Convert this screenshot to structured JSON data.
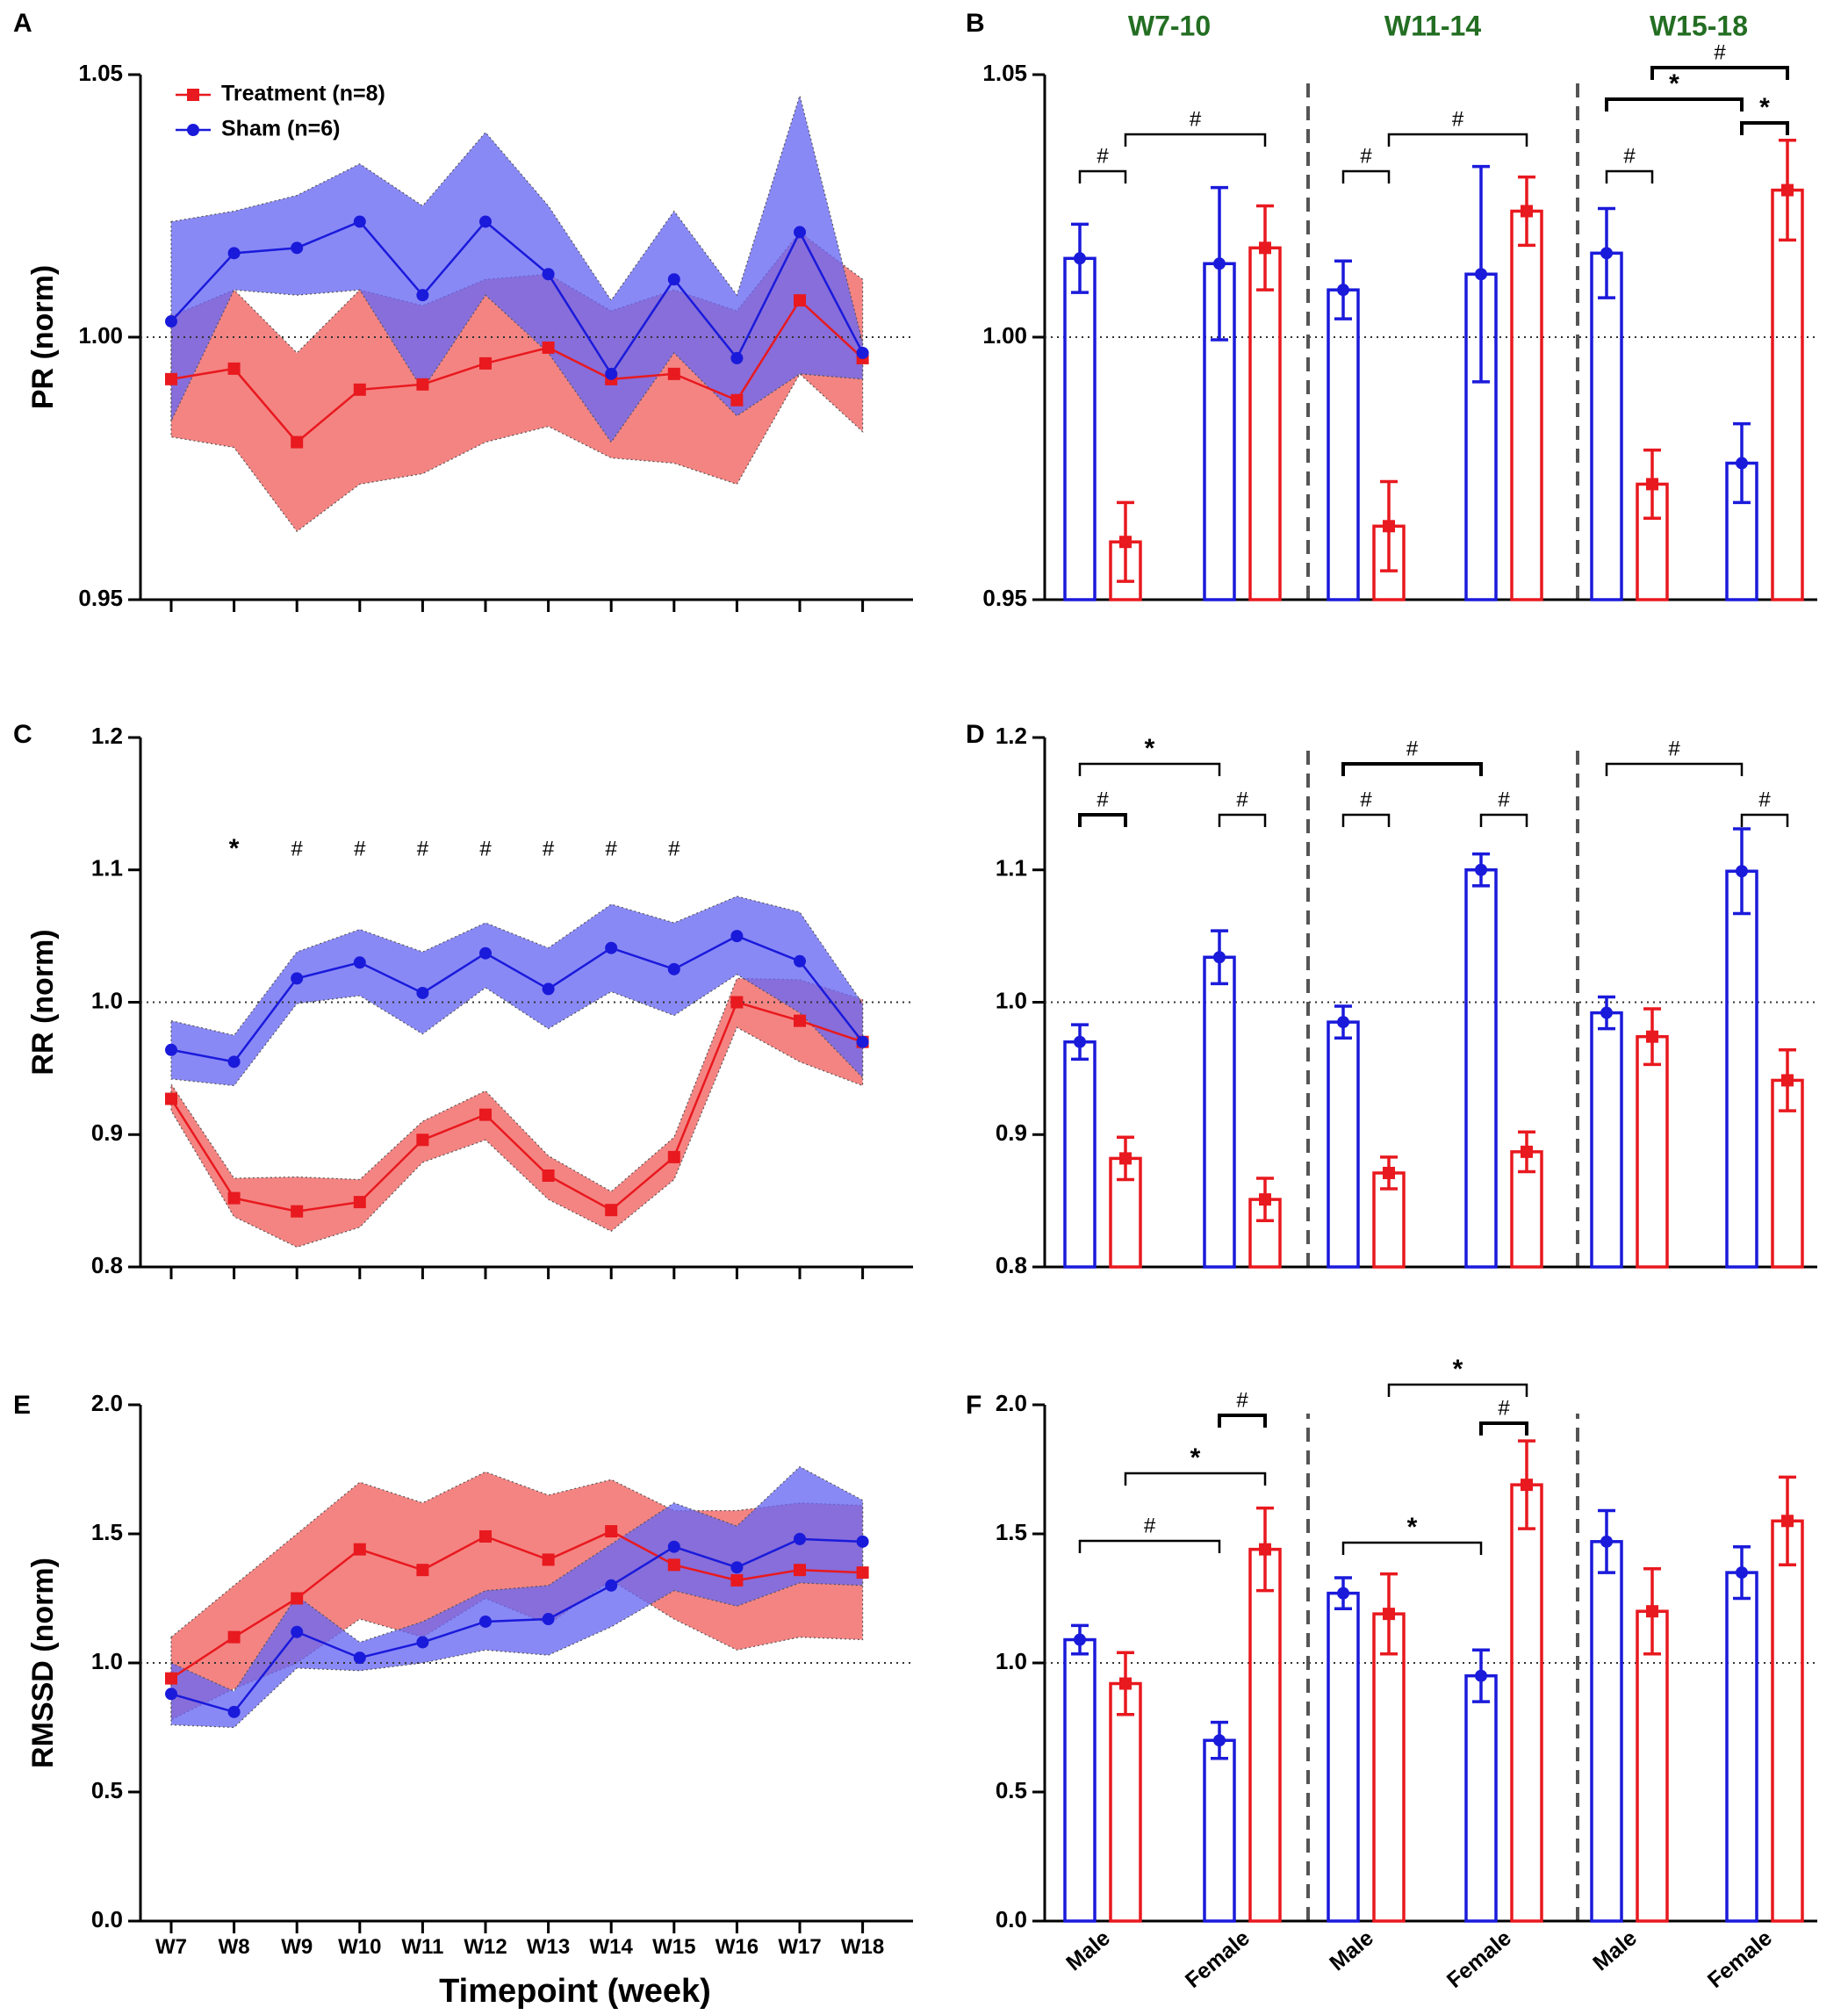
{
  "colors": {
    "treatment": "#e8191f",
    "sham": "#1a1adb",
    "treatment_band": "#f26f6c",
    "sham_band": "#6868f4",
    "overlap_band": "#6f3fa8",
    "group_title": "#236e23",
    "axis": "#000000",
    "divider": "#555555"
  },
  "x_axis_title": "Timepoint (week)",
  "legend": {
    "treatment": "Treatment (n=8)",
    "sham": "Sham (n=6)"
  },
  "chart_data": [
    {
      "id": "A",
      "panel_label": "A",
      "type": "line",
      "ylabel": "PR (norm)",
      "ylim": [
        0.95,
        1.05
      ],
      "yticks": [
        "0.95",
        "1.00",
        "1.05"
      ],
      "ytick_values": [
        0.95,
        1.0,
        1.05
      ],
      "reference_line": 1.0,
      "categories": [
        "W7",
        "W8",
        "W9",
        "W10",
        "W11",
        "W12",
        "W13",
        "W14",
        "W15",
        "W16",
        "W17",
        "W18"
      ],
      "series": [
        {
          "name": "Treatment (n=8)",
          "values": [
            0.992,
            0.994,
            0.98,
            0.99,
            0.991,
            0.995,
            0.998,
            0.992,
            0.993,
            0.988,
            1.007,
            0.996
          ],
          "lower": [
            0.981,
            0.979,
            0.963,
            0.972,
            0.974,
            0.98,
            0.983,
            0.977,
            0.976,
            0.972,
            0.993,
            0.982
          ],
          "upper": [
            1.004,
            1.009,
            0.997,
            1.009,
            1.006,
            1.011,
            1.012,
            1.005,
            1.009,
            1.005,
            1.02,
            1.011
          ]
        },
        {
          "name": "Sham (n=6)",
          "values": [
            1.003,
            1.016,
            1.017,
            1.022,
            1.008,
            1.022,
            1.012,
            0.993,
            1.011,
            0.996,
            1.02,
            0.997
          ],
          "lower": [
            0.984,
            1.009,
            1.008,
            1.009,
            0.99,
            1.008,
            0.997,
            0.98,
            0.997,
            0.985,
            0.993,
            0.992
          ],
          "upper": [
            1.022,
            1.024,
            1.027,
            1.033,
            1.025,
            1.039,
            1.025,
            1.007,
            1.024,
            1.008,
            1.046,
            0.999
          ]
        }
      ],
      "annotations": []
    },
    {
      "id": "C",
      "panel_label": "C",
      "type": "line",
      "ylabel": "RR (norm)",
      "ylim": [
        0.8,
        1.2
      ],
      "yticks": [
        "0.8",
        "0.9",
        "1.0",
        "1.1",
        "1.2"
      ],
      "ytick_values": [
        0.8,
        0.9,
        1.0,
        1.1,
        1.2
      ],
      "reference_line": 1.0,
      "categories": [
        "W7",
        "W8",
        "W9",
        "W10",
        "W11",
        "W12",
        "W13",
        "W14",
        "W15",
        "W16",
        "W17",
        "W18"
      ],
      "series": [
        {
          "name": "Treatment (n=8)",
          "values": [
            0.927,
            0.852,
            0.842,
            0.849,
            0.896,
            0.915,
            0.869,
            0.843,
            0.883,
            1.0,
            0.986,
            0.97
          ],
          "lower": [
            0.918,
            0.838,
            0.815,
            0.83,
            0.879,
            0.896,
            0.851,
            0.827,
            0.866,
            0.981,
            0.955,
            0.937
          ],
          "upper": [
            0.938,
            0.867,
            0.868,
            0.866,
            0.91,
            0.933,
            0.884,
            0.857,
            0.898,
            1.018,
            1.017,
            1.002
          ]
        },
        {
          "name": "Sham (n=6)",
          "values": [
            0.964,
            0.955,
            1.018,
            1.03,
            1.007,
            1.037,
            1.01,
            1.041,
            1.025,
            1.05,
            1.031,
            0.97
          ],
          "lower": [
            0.942,
            0.937,
            0.999,
            1.005,
            0.976,
            1.011,
            0.98,
            1.008,
            0.99,
            1.021,
            0.992,
            0.943
          ],
          "upper": [
            0.986,
            0.975,
            1.038,
            1.055,
            1.038,
            1.06,
            1.041,
            1.074,
            1.06,
            1.08,
            1.068,
            0.999
          ]
        }
      ],
      "annotations": [
        {
          "category": "W8",
          "symbol": "*"
        },
        {
          "category": "W9",
          "symbol": "#"
        },
        {
          "category": "W10",
          "symbol": "#"
        },
        {
          "category": "W11",
          "symbol": "#"
        },
        {
          "category": "W12",
          "symbol": "#"
        },
        {
          "category": "W13",
          "symbol": "#"
        },
        {
          "category": "W14",
          "symbol": "#"
        },
        {
          "category": "W15",
          "symbol": "#"
        }
      ]
    },
    {
      "id": "E",
      "panel_label": "E",
      "type": "line",
      "ylabel": "RMSSD (norm)",
      "ylim": [
        0.0,
        2.0
      ],
      "yticks": [
        "0.0",
        "0.5",
        "1.0",
        "1.5",
        "2.0"
      ],
      "ytick_values": [
        0.0,
        0.5,
        1.0,
        1.5,
        2.0
      ],
      "reference_line": 1.0,
      "categories": [
        "W7",
        "W8",
        "W9",
        "W10",
        "W11",
        "W12",
        "W13",
        "W14",
        "W15",
        "W16",
        "W17",
        "W18"
      ],
      "series": [
        {
          "name": "Treatment (n=8)",
          "values": [
            0.94,
            1.1,
            1.25,
            1.44,
            1.36,
            1.49,
            1.4,
            1.51,
            1.38,
            1.32,
            1.36,
            1.35
          ],
          "lower": [
            0.78,
            0.9,
            1.0,
            1.17,
            1.1,
            1.25,
            1.15,
            1.32,
            1.17,
            1.05,
            1.1,
            1.09
          ],
          "upper": [
            1.1,
            1.3,
            1.5,
            1.7,
            1.62,
            1.74,
            1.65,
            1.71,
            1.59,
            1.59,
            1.62,
            1.61
          ]
        },
        {
          "name": "Sham (n=6)",
          "values": [
            0.88,
            0.81,
            1.12,
            1.02,
            1.08,
            1.16,
            1.17,
            1.3,
            1.45,
            1.37,
            1.48,
            1.47
          ],
          "lower": [
            0.76,
            0.75,
            0.98,
            0.97,
            1.0,
            1.05,
            1.03,
            1.14,
            1.28,
            1.22,
            1.31,
            1.3
          ],
          "upper": [
            1.0,
            0.89,
            1.26,
            1.08,
            1.16,
            1.28,
            1.3,
            1.46,
            1.62,
            1.53,
            1.76,
            1.63
          ]
        }
      ],
      "annotations": []
    },
    {
      "id": "B",
      "panel_label": "B",
      "type": "bar",
      "ylabel": "",
      "ylim": [
        0.95,
        1.05
      ],
      "yticks": [
        "0.95",
        "1.00",
        "1.05"
      ],
      "ytick_values": [
        0.95,
        1.0,
        1.05
      ],
      "reference_line": 1.0,
      "group_titles": [
        "W7-10",
        "W11-14",
        "W15-18"
      ],
      "categories": [
        "Male",
        "Female",
        "Male",
        "Female",
        "Male",
        "Female"
      ],
      "series": [
        {
          "name": "Sham",
          "values": [
            1.015,
            1.014,
            1.009,
            1.012,
            1.016,
            0.976
          ],
          "errors": [
            0.0065,
            0.0145,
            0.0055,
            0.0205,
            0.0085,
            0.0075
          ]
        },
        {
          "name": "Treatment",
          "values": [
            0.961,
            1.017,
            0.964,
            1.024,
            0.972,
            1.028
          ],
          "errors": [
            0.0075,
            0.008,
            0.0085,
            0.0065,
            0.0065,
            0.0095
          ]
        }
      ],
      "brackets": [
        {
          "from": [
            0,
            "Sham"
          ],
          "to": [
            0,
            "Treatment"
          ],
          "level": 0,
          "symbol": "#",
          "bold": false
        },
        {
          "from": [
            0,
            "Treatment"
          ],
          "to": [
            1,
            "Treatment"
          ],
          "level": 1,
          "symbol": "#",
          "bold": false
        },
        {
          "from": [
            2,
            "Sham"
          ],
          "to": [
            2,
            "Treatment"
          ],
          "level": 0,
          "symbol": "#",
          "bold": false
        },
        {
          "from": [
            2,
            "Treatment"
          ],
          "to": [
            3,
            "Treatment"
          ],
          "level": 1,
          "symbol": "#",
          "bold": false
        },
        {
          "from": [
            4,
            "Sham"
          ],
          "to": [
            4,
            "Treatment"
          ],
          "level": 0,
          "symbol": "#",
          "bold": false
        },
        {
          "from": [
            4,
            "Sham"
          ],
          "to": [
            5,
            "Sham"
          ],
          "level": 1,
          "symbol": "*",
          "bold": true
        },
        {
          "from": [
            5,
            "Sham"
          ],
          "to": [
            5,
            "Treatment"
          ],
          "level": 1,
          "symbol": "*",
          "bold": true
        },
        {
          "from": [
            4,
            "Treatment"
          ],
          "to": [
            5,
            "Treatment"
          ],
          "level": 2,
          "symbol": "#",
          "bold": true
        }
      ]
    },
    {
      "id": "D",
      "panel_label": "D",
      "type": "bar",
      "ylabel": "",
      "ylim": [
        0.8,
        1.2
      ],
      "yticks": [
        "0.8",
        "0.9",
        "1.0",
        "1.1",
        "1.2"
      ],
      "ytick_values": [
        0.8,
        0.9,
        1.0,
        1.1,
        1.2
      ],
      "reference_line": 1.0,
      "group_titles": [],
      "categories": [
        "Male",
        "Female",
        "Male",
        "Female",
        "Male",
        "Female"
      ],
      "series": [
        {
          "name": "Sham",
          "values": [
            0.97,
            1.034,
            0.985,
            1.1,
            0.992,
            1.099
          ],
          "errors": [
            0.013,
            0.02,
            0.012,
            0.012,
            0.012,
            0.032
          ]
        },
        {
          "name": "Treatment",
          "values": [
            0.882,
            0.851,
            0.871,
            0.887,
            0.974,
            0.941
          ],
          "errors": [
            0.016,
            0.016,
            0.012,
            0.015,
            0.021,
            0.023
          ]
        }
      ],
      "brackets": [
        {
          "from": [
            0,
            "Sham"
          ],
          "to": [
            0,
            "Treatment"
          ],
          "level": 0,
          "symbol": "#",
          "bold": true
        },
        {
          "from": [
            1,
            "Sham"
          ],
          "to": [
            1,
            "Treatment"
          ],
          "level": 0,
          "symbol": "#",
          "bold": false
        },
        {
          "from": [
            0,
            "Sham"
          ],
          "to": [
            1,
            "Sham"
          ],
          "level": 1,
          "symbol": "*",
          "bold": false
        },
        {
          "from": [
            2,
            "Sham"
          ],
          "to": [
            2,
            "Treatment"
          ],
          "level": 0,
          "symbol": "#",
          "bold": false
        },
        {
          "from": [
            3,
            "Sham"
          ],
          "to": [
            3,
            "Treatment"
          ],
          "level": 0,
          "symbol": "#",
          "bold": false
        },
        {
          "from": [
            2,
            "Sham"
          ],
          "to": [
            3,
            "Sham"
          ],
          "level": 1,
          "symbol": "#",
          "bold": true
        },
        {
          "from": [
            5,
            "Sham"
          ],
          "to": [
            5,
            "Treatment"
          ],
          "level": 0,
          "symbol": "#",
          "bold": false
        },
        {
          "from": [
            4,
            "Sham"
          ],
          "to": [
            5,
            "Sham"
          ],
          "level": 1,
          "symbol": "#",
          "bold": false
        }
      ]
    },
    {
      "id": "F",
      "panel_label": "F",
      "type": "bar",
      "ylabel": "",
      "ylim": [
        0.0,
        2.0
      ],
      "yticks": [
        "0.0",
        "0.5",
        "1.0",
        "1.5",
        "2.0"
      ],
      "ytick_values": [
        0.0,
        0.5,
        1.0,
        1.5,
        2.0
      ],
      "reference_line": 1.0,
      "group_titles": [],
      "categories": [
        "Male",
        "Female",
        "Male",
        "Female",
        "Male",
        "Female"
      ],
      "series": [
        {
          "name": "Sham",
          "values": [
            1.09,
            0.7,
            1.27,
            0.95,
            1.47,
            1.35
          ],
          "errors": [
            0.055,
            0.07,
            0.06,
            0.1,
            0.12,
            0.1
          ]
        },
        {
          "name": "Treatment",
          "values": [
            0.92,
            1.44,
            1.19,
            1.69,
            1.2,
            1.55
          ],
          "errors": [
            0.12,
            0.16,
            0.155,
            0.17,
            0.165,
            0.17
          ]
        }
      ],
      "brackets": [
        {
          "from": [
            0,
            "Sham"
          ],
          "to": [
            1,
            "Sham"
          ],
          "level": 0,
          "symbol": "#",
          "bold": false
        },
        {
          "from": [
            0,
            "Treatment"
          ],
          "to": [
            1,
            "Treatment"
          ],
          "level": 1,
          "symbol": "*",
          "bold": false
        },
        {
          "from": [
            1,
            "Sham"
          ],
          "to": [
            1,
            "Treatment"
          ],
          "level": 2,
          "symbol": "#",
          "bold": true
        },
        {
          "from": [
            2,
            "Sham"
          ],
          "to": [
            3,
            "Sham"
          ],
          "level": 0,
          "symbol": "*",
          "bold": false
        },
        {
          "from": [
            3,
            "Sham"
          ],
          "to": [
            3,
            "Treatment"
          ],
          "level": 1,
          "symbol": "#",
          "bold": true
        },
        {
          "from": [
            2,
            "Treatment"
          ],
          "to": [
            3,
            "Treatment"
          ],
          "level": 2,
          "symbol": "*",
          "bold": false
        }
      ]
    }
  ]
}
